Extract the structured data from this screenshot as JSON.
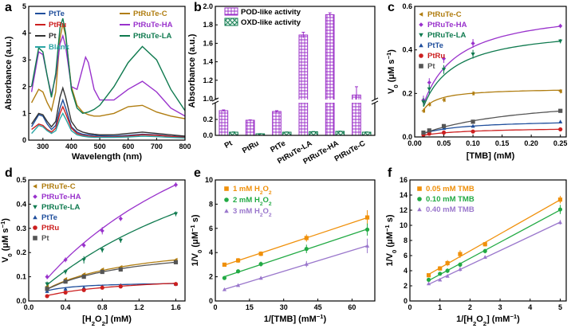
{
  "figure": {
    "panel_letters": [
      "a",
      "b",
      "c",
      "d",
      "e",
      "f"
    ]
  },
  "chart_data": [
    {
      "panel": "a",
      "type": "line",
      "title": "",
      "xlabel": "Wavelength (nm)",
      "ylabel": "Absorbance (a.u.)",
      "xlim": [
        250,
        800
      ],
      "ylim": [
        0,
        5
      ],
      "xticks": [
        300,
        400,
        500,
        600,
        700,
        800
      ],
      "yticks": [
        0,
        1,
        2,
        3,
        4,
        5
      ],
      "legend": [
        "PtTe",
        "PtRuTe-C",
        "PtRu",
        "PtRuTe-HA",
        "Pt",
        "PtRuTe-LA",
        "Blank"
      ],
      "series": [
        {
          "name": "PtTe",
          "color": "#1f4e9c",
          "x": [
            260,
            285,
            300,
            315,
            330,
            345,
            360,
            370,
            380,
            400,
            420,
            440,
            460,
            480,
            500,
            550,
            600,
            650,
            700,
            750,
            800
          ],
          "y": [
            0.5,
            0.95,
            0.9,
            0.6,
            0.4,
            0.55,
            1.2,
            1.5,
            1.2,
            0.5,
            0.3,
            0.22,
            0.2,
            0.18,
            0.16,
            0.15,
            0.18,
            0.22,
            0.2,
            0.15,
            0.12
          ]
        },
        {
          "name": "PtRuTe-C",
          "color": "#b07d10",
          "x": [
            260,
            285,
            300,
            315,
            330,
            345,
            360,
            370,
            380,
            400,
            420,
            440,
            460,
            480,
            500,
            550,
            600,
            650,
            700,
            750,
            800
          ],
          "y": [
            1.4,
            1.9,
            1.8,
            1.4,
            1.1,
            1.8,
            3.8,
            4.35,
            3.9,
            2.0,
            1.3,
            1.05,
            0.95,
            0.9,
            0.9,
            1.0,
            1.25,
            1.3,
            1.05,
            0.9,
            0.8
          ]
        },
        {
          "name": "PtRu",
          "color": "#cc1f1f",
          "x": [
            260,
            285,
            300,
            315,
            330,
            345,
            360,
            370,
            380,
            400,
            420,
            440,
            460,
            480,
            500,
            550,
            600,
            650,
            700,
            750,
            800
          ],
          "y": [
            0.4,
            0.6,
            0.55,
            0.4,
            0.3,
            0.45,
            1.0,
            1.25,
            1.0,
            0.45,
            0.25,
            0.18,
            0.15,
            0.13,
            0.12,
            0.12,
            0.15,
            0.2,
            0.18,
            0.14,
            0.1
          ]
        },
        {
          "name": "PtRuTe-HA",
          "color": "#9932cc",
          "x": [
            260,
            285,
            300,
            315,
            330,
            345,
            360,
            370,
            380,
            400,
            420,
            440,
            450,
            460,
            480,
            500,
            550,
            600,
            650,
            700,
            750,
            800
          ],
          "y": [
            1.8,
            3.3,
            3.2,
            2.4,
            1.7,
            2.4,
            3.6,
            3.9,
            3.5,
            2.0,
            1.9,
            2.7,
            3.1,
            2.9,
            1.9,
            1.5,
            1.5,
            1.9,
            2.2,
            1.8,
            1.2,
            0.9
          ]
        },
        {
          "name": "Pt",
          "color": "#333333",
          "x": [
            260,
            285,
            300,
            315,
            330,
            345,
            360,
            370,
            380,
            400,
            420,
            440,
            460,
            480,
            500,
            550,
            600,
            650,
            700,
            750,
            800
          ],
          "y": [
            0.6,
            1.0,
            0.95,
            0.7,
            0.5,
            0.7,
            1.6,
            1.95,
            1.6,
            0.7,
            0.4,
            0.3,
            0.25,
            0.22,
            0.2,
            0.2,
            0.25,
            0.3,
            0.25,
            0.2,
            0.15
          ]
        },
        {
          "name": "PtRuTe-LA",
          "color": "#0f7a4f",
          "x": [
            260,
            285,
            300,
            315,
            330,
            345,
            360,
            370,
            380,
            400,
            420,
            440,
            460,
            480,
            500,
            550,
            600,
            650,
            700,
            750,
            800
          ],
          "y": [
            2.0,
            3.45,
            3.3,
            2.4,
            1.6,
            2.5,
            4.2,
            4.55,
            4.0,
            1.9,
            1.2,
            1.0,
            1.05,
            1.15,
            1.3,
            2.0,
            2.9,
            3.5,
            3.0,
            1.9,
            1.1
          ]
        },
        {
          "name": "Blank",
          "color": "#2aa5a5",
          "x": [
            260,
            285,
            300,
            315,
            330,
            345,
            360,
            370,
            380,
            400,
            420,
            440,
            460,
            480,
            500,
            550,
            600,
            650,
            700,
            750,
            800
          ],
          "y": [
            0.25,
            0.55,
            0.5,
            0.35,
            0.25,
            0.35,
            0.8,
            1.0,
            0.8,
            0.35,
            0.2,
            0.15,
            0.12,
            0.1,
            0.1,
            0.1,
            0.12,
            0.15,
            0.13,
            0.1,
            0.08
          ]
        }
      ]
    },
    {
      "panel": "b",
      "type": "bar",
      "title": "",
      "xlabel": "",
      "ylabel": "Absorbance (a.u.)",
      "categories": [
        "Pt",
        "PtRu",
        "PtTe",
        "PtRuTe-LA",
        "PtRuTe-HA",
        "PtRuTe-C"
      ],
      "broken_axis": {
        "lower": [
          0,
          0.4
        ],
        "upper": [
          1.0,
          2.0
        ]
      },
      "yticks_lower": [
        "0.0",
        "0.2"
      ],
      "yticks_upper": [
        "1.0",
        "1.2",
        "1.4",
        "1.6",
        "1.8",
        "2.0"
      ],
      "legend": [
        "POD-like activity",
        "OXD-like activity"
      ],
      "series": [
        {
          "name": "POD-like activity",
          "color": "#9b30c8",
          "values": [
            0.31,
            0.19,
            0.3,
            1.69,
            1.91,
            1.04
          ],
          "errors": [
            0.01,
            0.005,
            0.01,
            0.03,
            0.02,
            0.09
          ]
        },
        {
          "name": "OXD-like activity",
          "color": "#0f7a4f",
          "values": [
            0.04,
            0.02,
            0.04,
            0.045,
            0.05,
            0.04
          ],
          "errors": [
            0.003,
            0.002,
            0.003,
            0.003,
            0.003,
            0.003
          ]
        }
      ]
    },
    {
      "panel": "c",
      "type": "scatter",
      "title": "",
      "xlabel": "[TMB] (mM)",
      "ylabel": "V0 (μM s−1)",
      "xlim": [
        0,
        0.26
      ],
      "ylim": [
        0,
        0.6
      ],
      "xticks": [
        "0.00",
        "0.05",
        "0.10",
        "0.15",
        "0.20",
        "0.25"
      ],
      "yticks": [
        "0.0",
        "0.2",
        "0.4",
        "0.6"
      ],
      "legend": [
        "PtRuTe-C",
        "PtRuTe-HA",
        "PtRuTe-LA",
        "PtTe",
        "PtRu",
        "Pt"
      ],
      "series": [
        {
          "name": "PtRuTe-C",
          "color": "#b07d10",
          "marker": "◀",
          "x": [
            0.015,
            0.025,
            0.05,
            0.1,
            0.25
          ],
          "y": [
            0.12,
            0.15,
            0.17,
            0.2,
            0.21
          ],
          "errors": [
            0.01,
            0.01,
            0.01,
            0.01,
            0.01
          ],
          "vmax": 0.225,
          "km": 0.012
        },
        {
          "name": "PtRuTe-HA",
          "color": "#9932cc",
          "marker": "◆",
          "x": [
            0.015,
            0.025,
            0.05,
            0.1,
            0.25
          ],
          "y": [
            0.17,
            0.25,
            0.36,
            0.43,
            0.51
          ],
          "errors": [
            0.02,
            0.02,
            0.02,
            0.02,
            0.01
          ],
          "vmax": 0.6,
          "km": 0.045
        },
        {
          "name": "PtRuTe-LA",
          "color": "#0f7a4f",
          "marker": "▼",
          "x": [
            0.015,
            0.025,
            0.05,
            0.1,
            0.25
          ],
          "y": [
            0.16,
            0.22,
            0.31,
            0.38,
            0.44
          ],
          "errors": [
            0.02,
            0.02,
            0.02,
            0.02,
            0.01
          ],
          "vmax": 0.51,
          "km": 0.04
        },
        {
          "name": "PtTe",
          "color": "#1f4e9c",
          "marker": "▲",
          "x": [
            0.015,
            0.025,
            0.05,
            0.1,
            0.25
          ],
          "y": [
            0.02,
            0.03,
            0.04,
            0.05,
            0.07
          ],
          "errors": [
            0.005,
            0.005,
            0.005,
            0.005,
            0.005
          ],
          "vmax": 0.08,
          "km": 0.06
        },
        {
          "name": "PtRu",
          "color": "#cc1f1f",
          "marker": "●",
          "x": [
            0.015,
            0.025,
            0.05,
            0.1,
            0.25
          ],
          "y": [
            0.01,
            0.015,
            0.02,
            0.025,
            0.035
          ],
          "errors": [
            0.003,
            0.003,
            0.003,
            0.003,
            0.003
          ],
          "vmax": 0.045,
          "km": 0.07
        },
        {
          "name": "Pt",
          "color": "#555555",
          "marker": "■",
          "x": [
            0.015,
            0.025,
            0.05,
            0.1,
            0.25
          ],
          "y": [
            0.02,
            0.03,
            0.05,
            0.07,
            0.12
          ],
          "errors": [
            0.005,
            0.005,
            0.005,
            0.005,
            0.005
          ],
          "vmax": 0.2,
          "km": 0.17
        }
      ]
    },
    {
      "panel": "d",
      "type": "scatter",
      "title": "",
      "xlabel": "[H2O2] (mM)",
      "ylabel": "V0 (μM s−1)",
      "xlim": [
        0,
        1.7
      ],
      "ylim": [
        0,
        0.5
      ],
      "xticks": [
        "0.0",
        "0.4",
        "0.8",
        "1.2",
        "1.6"
      ],
      "yticks": [
        "0.0",
        "0.1",
        "0.2",
        "0.3",
        "0.4",
        "0.5"
      ],
      "legend": [
        "PtRuTe-C",
        "PtRuTe-HA",
        "PtRuTe-LA",
        "PtTe",
        "PtRu",
        "Pt"
      ],
      "series": [
        {
          "name": "PtRuTe-C",
          "color": "#b07d10",
          "marker": "◀",
          "x": [
            0.2,
            0.4,
            0.6,
            0.8,
            1.0,
            1.6
          ],
          "y": [
            0.06,
            0.09,
            0.11,
            0.13,
            0.14,
            0.17
          ],
          "errors": [
            0.005,
            0.005,
            0.005,
            0.005,
            0.005,
            0.005
          ],
          "vmax": 0.26,
          "km": 0.85
        },
        {
          "name": "PtRuTe-HA",
          "color": "#9932cc",
          "marker": "◆",
          "x": [
            0.2,
            0.4,
            0.6,
            0.8,
            1.0,
            1.6
          ],
          "y": [
            0.1,
            0.17,
            0.23,
            0.29,
            0.34,
            0.48
          ],
          "errors": [
            0.01,
            0.01,
            0.01,
            0.015,
            0.01,
            0.01
          ],
          "vmax": 1.2,
          "km": 2.4
        },
        {
          "name": "PtRuTe-LA",
          "color": "#0f7a4f",
          "marker": "▼",
          "x": [
            0.2,
            0.4,
            0.6,
            0.8,
            1.0,
            1.6
          ],
          "y": [
            0.07,
            0.12,
            0.17,
            0.21,
            0.25,
            0.36
          ],
          "errors": [
            0.01,
            0.01,
            0.015,
            0.01,
            0.01,
            0.01
          ],
          "vmax": 1.0,
          "km": 2.8
        },
        {
          "name": "PtTe",
          "color": "#1f4e9c",
          "marker": "▲",
          "x": [
            0.2,
            0.4,
            0.6,
            0.8,
            1.0,
            1.6
          ],
          "y": [
            0.04,
            0.05,
            0.055,
            0.06,
            0.065,
            0.07
          ],
          "errors": [
            0.003,
            0.003,
            0.003,
            0.003,
            0.003,
            0.003
          ],
          "vmax": 0.08,
          "km": 0.18
        },
        {
          "name": "PtRu",
          "color": "#cc1f1f",
          "marker": "●",
          "x": [
            0.2,
            0.4,
            0.6,
            0.8,
            1.0,
            1.6
          ],
          "y": [
            0.02,
            0.035,
            0.045,
            0.055,
            0.06,
            0.07
          ],
          "errors": [
            0.003,
            0.003,
            0.003,
            0.003,
            0.003,
            0.003
          ],
          "vmax": 0.11,
          "km": 0.8
        },
        {
          "name": "Pt",
          "color": "#555555",
          "marker": "■",
          "x": [
            0.2,
            0.4,
            0.6,
            0.8,
            1.0,
            1.6
          ],
          "y": [
            0.05,
            0.08,
            0.1,
            0.12,
            0.13,
            0.16
          ],
          "errors": [
            0.005,
            0.005,
            0.005,
            0.005,
            0.005,
            0.005
          ],
          "vmax": 0.24,
          "km": 0.8
        }
      ]
    },
    {
      "panel": "e",
      "type": "scatter",
      "title": "",
      "xlabel": "1/[TMB] (mM−1)",
      "ylabel": "1/V0 (μM−1 s)",
      "xlim": [
        0,
        70
      ],
      "ylim": [
        0,
        10
      ],
      "xticks": [
        "0",
        "15",
        "30",
        "45",
        "60"
      ],
      "yticks": [
        "0",
        "2",
        "4",
        "6",
        "8",
        "10"
      ],
      "legend": [
        "1 mM H2O2",
        "2 mM H2O2",
        "3 mM H2O2"
      ],
      "series": [
        {
          "name": "1 mM H2O2",
          "color": "#f0900a",
          "marker": "■",
          "x": [
            4,
            10,
            20,
            40,
            66.7
          ],
          "y": [
            3.0,
            3.35,
            3.9,
            5.2,
            6.9
          ],
          "errors": [
            0.15,
            0.2,
            0.2,
            0.3,
            0.6
          ]
        },
        {
          "name": "2 mM H2O2",
          "color": "#22aa44",
          "marker": "●",
          "x": [
            4,
            10,
            20,
            40,
            66.7
          ],
          "y": [
            1.9,
            2.45,
            3.05,
            4.3,
            5.9
          ],
          "errors": [
            0.1,
            0.15,
            0.2,
            0.35,
            0.5
          ]
        },
        {
          "name": "3 mM H2O2",
          "color": "#9a77cc",
          "marker": "▲",
          "x": [
            4,
            10,
            20,
            40,
            66.7
          ],
          "y": [
            0.95,
            1.3,
            1.9,
            3.05,
            4.55
          ],
          "errors": [
            0.1,
            0.1,
            0.15,
            0.25,
            0.6
          ]
        }
      ]
    },
    {
      "panel": "f",
      "type": "scatter",
      "title": "",
      "xlabel": "1/[H2O2] (mM−1)",
      "ylabel": "1/V0 (μM−1 s)",
      "xlim": [
        0,
        5.2
      ],
      "ylim": [
        0,
        16
      ],
      "xticks": [
        "0",
        "1",
        "2",
        "3",
        "4",
        "5"
      ],
      "yticks": [
        "0",
        "2",
        "4",
        "6",
        "8",
        "10",
        "12",
        "14",
        "16"
      ],
      "legend": [
        "0.05 mM TMB",
        "0.10 mM TMB",
        "0.40 mM TMB"
      ],
      "series": [
        {
          "name": "0.05 mM TMB",
          "color": "#f0900a",
          "marker": "■",
          "x": [
            0.625,
            1.0,
            1.25,
            1.67,
            2.5,
            5.0
          ],
          "y": [
            3.4,
            4.3,
            5.0,
            6.2,
            7.5,
            13.4
          ],
          "errors": [
            0.2,
            0.3,
            0.4,
            0.5,
            0.3,
            0.5
          ]
        },
        {
          "name": "0.10 mM TMB",
          "color": "#22aa44",
          "marker": "●",
          "x": [
            0.625,
            1.0,
            1.25,
            1.67,
            2.5,
            5.0
          ],
          "y": [
            2.8,
            3.6,
            4.0,
            4.8,
            6.6,
            12.1
          ],
          "errors": [
            0.2,
            0.2,
            0.3,
            0.3,
            0.3,
            0.6
          ]
        },
        {
          "name": "0.40 mM TMB",
          "color": "#9a77cc",
          "marker": "▲",
          "x": [
            0.625,
            1.0,
            1.25,
            1.67,
            2.5,
            5.0
          ],
          "y": [
            2.3,
            2.8,
            3.3,
            4.2,
            5.8,
            10.4
          ],
          "errors": [
            0.2,
            0.2,
            0.2,
            0.3,
            0.2,
            0.3
          ]
        }
      ]
    }
  ]
}
